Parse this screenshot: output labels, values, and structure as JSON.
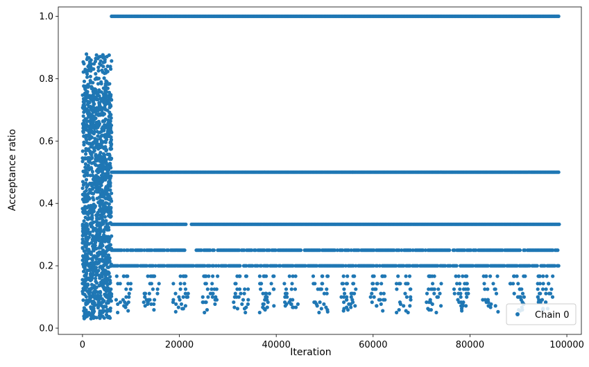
{
  "chart_data": {
    "type": "scatter",
    "title": "",
    "xlabel": "Iteration",
    "ylabel": "Acceptance ratio",
    "xlim": [
      -5000,
      103000
    ],
    "ylim": [
      -0.02,
      1.03
    ],
    "xticks": [
      0,
      20000,
      40000,
      60000,
      80000,
      100000
    ],
    "xtick_labels": [
      "0",
      "20000",
      "40000",
      "60000",
      "80000",
      "100000"
    ],
    "yticks": [
      0.0,
      0.2,
      0.4,
      0.6,
      0.8,
      1.0
    ],
    "ytick_labels": [
      "0.0",
      "0.2",
      "0.4",
      "0.6",
      "0.8",
      "1.0"
    ],
    "grid": false,
    "legend_position": "bottom-right",
    "series": [
      {
        "name": "Chain 0",
        "color": "#1f77b4",
        "marker": "circle",
        "burn_in": {
          "x_range": [
            0,
            6000
          ],
          "y_range": [
            0.03,
            0.88
          ],
          "dense_band": [
            0.1,
            0.76
          ]
        },
        "levels": [
          {
            "y": 1.0,
            "segments": [
              [
                6000,
                98500
              ]
            ]
          },
          {
            "y": 0.5,
            "segments": [
              [
                6000,
                98500
              ]
            ]
          },
          {
            "y": 0.333,
            "segments": [
              [
                6000,
                21500
              ],
              [
                22500,
                98500
              ]
            ]
          },
          {
            "y": 0.25,
            "segments": [
              [
                6000,
                21500
              ],
              [
                23500,
                98500
              ]
            ]
          },
          {
            "y": 0.2,
            "segments": [
              [
                6000,
                98500
              ]
            ]
          }
        ],
        "sparse_levels": [
          0.1667,
          0.1429,
          0.125,
          0.111,
          0.1,
          0.0909,
          0.0833,
          0.0769,
          0.0714,
          0.0667,
          0.0625,
          0.0588,
          0.0556,
          0.0526,
          0.05
        ],
        "sparse_x_range": [
          6000,
          98500
        ]
      }
    ]
  }
}
